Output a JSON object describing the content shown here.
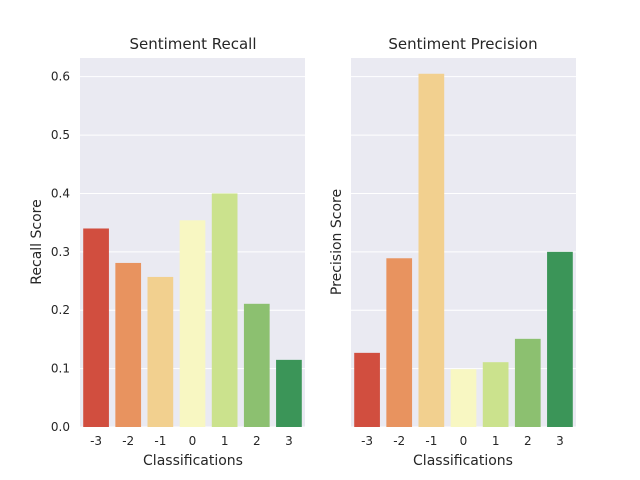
{
  "chart_data": [
    {
      "type": "bar",
      "title": "Sentiment Recall",
      "xlabel": "Classifications",
      "ylabel": "Recall Score",
      "categories": [
        "-3",
        "-2",
        "-1",
        "0",
        "1",
        "2",
        "3"
      ],
      "values": [
        0.34,
        0.281,
        0.257,
        0.354,
        0.4,
        0.211,
        0.115
      ],
      "ylim": [
        0,
        0.632
      ],
      "yticks": [
        "0.0",
        "0.1",
        "0.2",
        "0.3",
        "0.4",
        "0.5",
        "0.6"
      ],
      "grid": true,
      "shared_y": true
    },
    {
      "type": "bar",
      "title": "Sentiment Precision",
      "xlabel": "Classifications",
      "ylabel": "Precision Score",
      "categories": [
        "-3",
        "-2",
        "-1",
        "0",
        "1",
        "2",
        "3"
      ],
      "values": [
        0.127,
        0.289,
        0.605,
        0.099,
        0.111,
        0.151,
        0.3
      ],
      "ylim": [
        0,
        0.632
      ],
      "grid": true,
      "shared_y": true
    }
  ],
  "colors": {
    "background": "#eaeaf2",
    "grid": "#ffffff",
    "bars": [
      "#d14e3f",
      "#e8935f",
      "#f2d08f",
      "#f8f7c2",
      "#cbe28d",
      "#8cc070",
      "#3b9558"
    ]
  }
}
